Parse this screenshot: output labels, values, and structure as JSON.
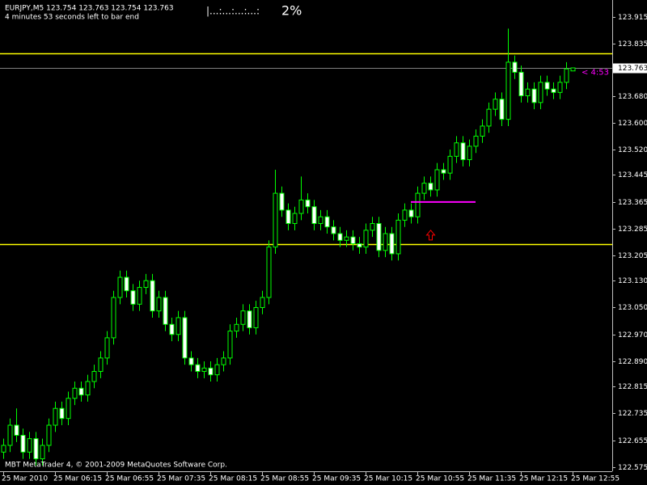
{
  "chart_data": {
    "type": "candlestick",
    "title": "EURJPY,M5  123.754 123.763 123.754 123.763",
    "subtitle": "4 minutes 53 seconds left to bar end",
    "progress_bar": "|...:...:...:...:",
    "progress": "2%",
    "footer": "MBT MetaTrader 4, © 2001-2009 MetaQuotes Software Corp.",
    "countdown": "< 4:53",
    "categories": [
      "25 Mar 2010",
      null,
      null,
      null,
      null,
      null,
      null,
      null,
      "25 Mar 06:15",
      null,
      null,
      null,
      null,
      null,
      null,
      null,
      "25 Mar 06:55",
      null,
      null,
      null,
      null,
      null,
      null,
      null,
      "25 Mar 07:35",
      null,
      null,
      null,
      null,
      null,
      null,
      null,
      "25 Mar 08:15",
      null,
      null,
      null,
      null,
      null,
      null,
      null,
      "25 Mar 08:55",
      null,
      null,
      null,
      null,
      null,
      null,
      null,
      "25 Mar 09:35",
      null,
      null,
      null,
      null,
      null,
      null,
      null,
      "25 Mar 10:15",
      null,
      null,
      null,
      null,
      null,
      null,
      null,
      "25 Mar 10:55",
      null,
      null,
      null,
      null,
      null,
      null,
      null,
      "25 Mar 11:35",
      null,
      null,
      null,
      null,
      null,
      null,
      null,
      "25 Mar 12:15",
      null,
      null,
      null,
      null,
      null,
      null,
      null,
      "25 Mar 12:55"
    ],
    "open": [
      122.62,
      122.64,
      122.7,
      122.67,
      122.62,
      122.66,
      122.6,
      122.64,
      122.7,
      122.75,
      122.72,
      122.78,
      122.81,
      122.79,
      122.83,
      122.86,
      122.9,
      122.96,
      123.08,
      123.14,
      123.1,
      123.06,
      123.11,
      123.13,
      123.04,
      123.08,
      123.0,
      122.97,
      123.02,
      122.9,
      122.88,
      122.86,
      122.87,
      122.85,
      122.88,
      122.9,
      122.98,
      123.0,
      123.04,
      122.99,
      123.05,
      123.08,
      123.23,
      123.39,
      123.34,
      123.3,
      123.33,
      123.37,
      123.35,
      123.3,
      123.32,
      123.29,
      123.27,
      123.25,
      123.26,
      123.24,
      123.23,
      123.28,
      123.3,
      123.22,
      123.27,
      123.21,
      123.31,
      123.34,
      123.32,
      123.39,
      123.42,
      123.4,
      123.46,
      123.45,
      123.5,
      123.54,
      123.49,
      123.53,
      123.56,
      123.59,
      123.64,
      123.67,
      123.61,
      123.78,
      123.75,
      123.68,
      123.7,
      123.66,
      123.72,
      123.7,
      123.69,
      123.72,
      123.754
    ],
    "high": [
      122.66,
      122.72,
      122.75,
      122.69,
      122.68,
      122.68,
      122.66,
      122.72,
      122.77,
      122.77,
      122.8,
      122.83,
      122.83,
      122.85,
      122.88,
      122.92,
      122.98,
      123.1,
      123.16,
      123.16,
      123.12,
      123.13,
      123.15,
      123.15,
      123.1,
      123.1,
      123.02,
      123.04,
      123.04,
      122.92,
      122.9,
      122.89,
      122.89,
      122.9,
      122.92,
      123.0,
      123.02,
      123.06,
      123.06,
      123.07,
      123.1,
      123.25,
      123.46,
      123.41,
      123.36,
      123.35,
      123.44,
      123.39,
      123.37,
      123.34,
      123.34,
      123.31,
      123.29,
      123.28,
      123.28,
      123.26,
      123.3,
      123.32,
      123.32,
      123.29,
      123.29,
      123.33,
      123.36,
      123.36,
      123.41,
      123.44,
      123.44,
      123.48,
      123.48,
      123.52,
      123.56,
      123.56,
      123.55,
      123.58,
      123.61,
      123.66,
      123.69,
      123.69,
      123.88,
      123.8,
      123.77,
      123.72,
      123.72,
      123.74,
      123.74,
      123.72,
      123.74,
      123.78,
      123.763
    ],
    "low": [
      122.6,
      122.62,
      122.65,
      122.6,
      122.6,
      122.58,
      122.58,
      122.62,
      122.68,
      122.7,
      122.7,
      122.76,
      122.77,
      122.77,
      122.81,
      122.84,
      122.88,
      122.94,
      123.06,
      123.08,
      123.04,
      123.04,
      123.09,
      123.02,
      123.02,
      122.98,
      122.95,
      122.95,
      122.88,
      122.86,
      122.84,
      122.84,
      122.83,
      122.83,
      122.86,
      122.88,
      122.96,
      122.98,
      122.97,
      122.97,
      123.03,
      123.06,
      123.21,
      123.32,
      123.28,
      123.28,
      123.31,
      123.33,
      123.28,
      123.28,
      123.27,
      123.25,
      123.23,
      123.23,
      123.22,
      123.21,
      123.21,
      123.26,
      123.2,
      123.2,
      123.19,
      123.19,
      123.29,
      123.3,
      123.3,
      123.37,
      123.38,
      123.38,
      123.43,
      123.43,
      123.48,
      123.47,
      123.47,
      123.51,
      123.54,
      123.57,
      123.62,
      123.59,
      123.59,
      123.73,
      123.66,
      123.66,
      123.64,
      123.64,
      123.68,
      123.67,
      123.67,
      123.7,
      123.754
    ],
    "close": [
      122.64,
      122.7,
      122.67,
      122.62,
      122.66,
      122.6,
      122.64,
      122.7,
      122.75,
      122.72,
      122.78,
      122.81,
      122.79,
      122.83,
      122.86,
      122.9,
      122.96,
      123.08,
      123.14,
      123.1,
      123.06,
      123.11,
      123.13,
      123.04,
      123.08,
      123.0,
      122.97,
      123.02,
      122.9,
      122.88,
      122.86,
      122.87,
      122.85,
      122.88,
      122.9,
      122.98,
      123.0,
      123.04,
      122.99,
      123.05,
      123.08,
      123.23,
      123.39,
      123.34,
      123.3,
      123.33,
      123.37,
      123.35,
      123.3,
      123.32,
      123.29,
      123.27,
      123.25,
      123.26,
      123.24,
      123.23,
      123.28,
      123.3,
      123.22,
      123.27,
      123.21,
      123.31,
      123.34,
      123.32,
      123.39,
      123.42,
      123.4,
      123.46,
      123.45,
      123.5,
      123.54,
      123.49,
      123.53,
      123.56,
      123.59,
      123.64,
      123.67,
      123.61,
      123.78,
      123.75,
      123.68,
      123.7,
      123.66,
      123.72,
      123.7,
      123.69,
      123.72,
      123.76,
      123.763
    ],
    "up_color": "#000000",
    "down_color": "#ffffff",
    "wick_color": "#00ff00",
    "current_price": 123.763,
    "hlines": [
      {
        "value": 123.807,
        "color": "#ffff00"
      },
      {
        "value": 123.239,
        "color": "#ffff00"
      }
    ],
    "segment": {
      "x": [
        63,
        73
      ],
      "value": 123.364,
      "color": "#ff00ff"
    },
    "arrow": {
      "x": 66,
      "value": 123.28,
      "color": "#ff0000"
    },
    "ylim": [
      122.563,
      123.965
    ],
    "yticks": [
      123.915,
      123.835,
      {
        "value": 123.68,
        "label": "123.680"
      },
      {
        "value": 123.6,
        "label": "123.600"
      },
      {
        "value": 123.52,
        "label": "123.520"
      },
      123.445,
      123.365,
      123.285,
      123.205,
      {
        "value": 123.13,
        "label": "123.130"
      },
      {
        "value": 123.05,
        "label": "123.050"
      },
      {
        "value": 122.97,
        "label": "122.970"
      },
      {
        "value": 122.89,
        "label": "122.890"
      },
      122.815,
      122.735,
      122.655,
      122.575
    ]
  }
}
